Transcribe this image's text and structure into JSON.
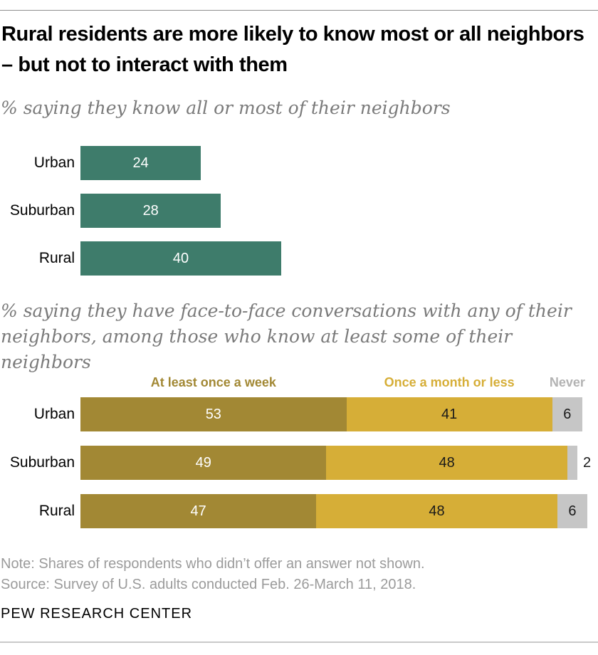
{
  "page": {
    "title": "Rural residents are more likely to know most or all neighbors – but not to interact with them",
    "note": "Note: Shares of respondents who didn’t offer an answer not shown.",
    "source": "Source: Survey of U.S. adults conducted Feb. 26-March 11, 2018.",
    "brand": "PEW RESEARCH CENTER"
  },
  "colors": {
    "teal": "#3E7C6B",
    "dark_gold": "#A28834",
    "light_gold": "#D6AE37",
    "gray_segment": "#C6C6C6",
    "legend_never_gray": "#B3B3B3",
    "subtitle_gray": "#7A7A7A",
    "note_gray": "#9B9B9B",
    "white_label": "#FFFFFF",
    "dark_label": "#1A1A1A"
  },
  "chart_data": [
    {
      "type": "bar",
      "orientation": "horizontal",
      "title": "% saying they know all or most of their neighbors",
      "categories": [
        "Urban",
        "Suburban",
        "Rural"
      ],
      "values": [
        24,
        28,
        40
      ],
      "bar_color": "#3E7C6B",
      "value_label_color": "#FFFFFF",
      "xlim": [
        0,
        100
      ],
      "grid": false,
      "legend": "none"
    },
    {
      "type": "bar",
      "stacked": true,
      "orientation": "horizontal",
      "title": "% saying they have face-to-face conversations with any of their neighbors, among those who know at least some of their neighbors",
      "categories": [
        "Urban",
        "Suburban",
        "Rural"
      ],
      "series": [
        {
          "name": "At least once a week",
          "color": "#A28834",
          "label_color": "#FFFFFF",
          "legend_color": "#A28834",
          "values": [
            53,
            49,
            47
          ]
        },
        {
          "name": "Once a month or less",
          "color": "#D6AE37",
          "label_color": "#1A1A1A",
          "legend_color": "#D6AE37",
          "values": [
            41,
            48,
            48
          ]
        },
        {
          "name": "Never",
          "color": "#C6C6C6",
          "label_color": "#1A1A1A",
          "legend_color": "#B3B3B3",
          "values": [
            6,
            2,
            6
          ]
        }
      ],
      "xlim": [
        0,
        100
      ],
      "grid": false,
      "legend": "top"
    }
  ]
}
